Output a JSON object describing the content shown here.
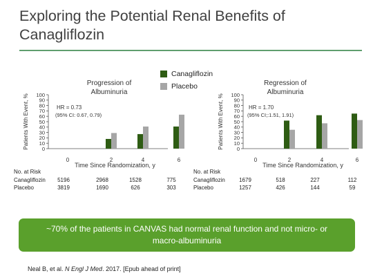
{
  "slide": {
    "title": "Exploring the Potential Renal Benefits of Canagliflozin",
    "callout": "~70% of the patients in CANVAS had normal renal function and not micro- or macro-albuminuria",
    "citation_pre": "Neal B, et al. ",
    "citation_journal": "N Engl J Med",
    "citation_post": ". 2017. [Epub ahead of print]"
  },
  "legend": [
    {
      "name": "Canagliflozin",
      "color": "#2e5c13"
    },
    {
      "name": "Placebo",
      "color": "#a6a6a6"
    }
  ],
  "chart_data": [
    {
      "type": "bar",
      "title": "Progression of Albuminuria",
      "categories": [
        "0",
        "2",
        "4",
        "6"
      ],
      "series": [
        {
          "name": "Canagliflozin",
          "values": [
            0,
            18,
            27,
            41
          ]
        },
        {
          "name": "Placebo",
          "values": [
            0,
            29,
            41,
            63
          ]
        }
      ],
      "annotation": [
        "HR = 0.73",
        "(95% CI: 0.67, 0.79)"
      ],
      "xlabel": "Time Since Randomization, y",
      "ylabel": "Patients With Event, %",
      "ylim": [
        0,
        100
      ],
      "yticks": [
        0,
        10,
        20,
        30,
        40,
        50,
        60,
        70,
        80,
        90,
        100
      ],
      "risk": {
        "header": "No. at Risk",
        "rows": [
          {
            "label": "Canagliflozin",
            "values": [
              "5196",
              "2968",
              "1528",
              "775"
            ]
          },
          {
            "label": "Placebo",
            "values": [
              "3819",
              "1690",
              "626",
              "303"
            ]
          }
        ]
      }
    },
    {
      "type": "bar",
      "title": "Regression of Albuminuria",
      "categories": [
        "0",
        "2",
        "4",
        "6"
      ],
      "series": [
        {
          "name": "Canagliflozin",
          "values": [
            0,
            52,
            62,
            65
          ]
        },
        {
          "name": "Placebo",
          "values": [
            0,
            35,
            47,
            53
          ]
        }
      ],
      "annotation": [
        "HR = 1.70",
        "(95% CI;:1.51, 1.91)"
      ],
      "xlabel": "Time Since Randomization, y",
      "ylabel": "Patients With Event, %",
      "ylim": [
        0,
        100
      ],
      "yticks": [
        0,
        10,
        20,
        30,
        40,
        50,
        60,
        70,
        80,
        90,
        100
      ],
      "risk": {
        "header": "No. at Risk",
        "rows": [
          {
            "label": "Canagliflozin",
            "values": [
              "1679",
              "518",
              "227",
              "112"
            ]
          },
          {
            "label": "Placebo",
            "values": [
              "1257",
              "426",
              "144",
              "59"
            ]
          }
        ]
      }
    }
  ]
}
